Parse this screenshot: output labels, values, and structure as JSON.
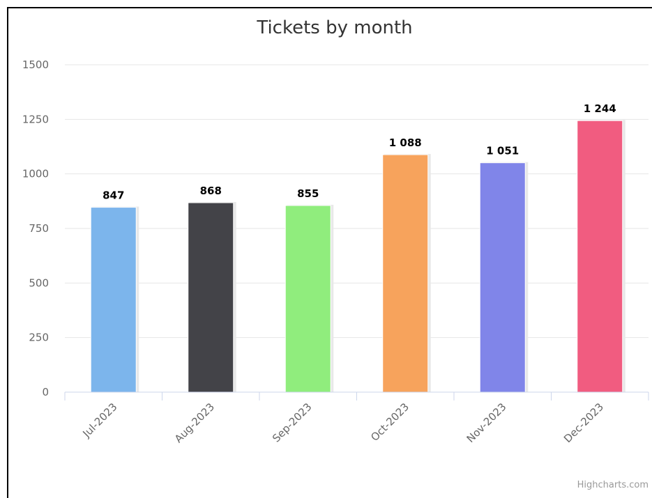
{
  "chart_data": {
    "type": "bar",
    "title": "Tickets by month",
    "categories": [
      "Jul-2023",
      "Aug-2023",
      "Sep-2023",
      "Oct-2023",
      "Nov-2023",
      "Dec-2023"
    ],
    "values": [
      847,
      868,
      855,
      1088,
      1051,
      1244
    ],
    "data_labels": [
      "847",
      "868",
      "855",
      "1 088",
      "1 051",
      "1 244"
    ],
    "colors": [
      "#7cb5ec",
      "#434348",
      "#90ed7d",
      "#f7a35c",
      "#8085e9",
      "#f15c80"
    ],
    "ylim": [
      0,
      1500
    ],
    "yticks": [
      0,
      250,
      500,
      750,
      1000,
      1250,
      1500
    ],
    "ytick_labels": [
      "0",
      "250",
      "500",
      "750",
      "1000",
      "1250",
      "1500"
    ],
    "grid": true,
    "legend": "none",
    "credit": "Highcharts.com"
  }
}
